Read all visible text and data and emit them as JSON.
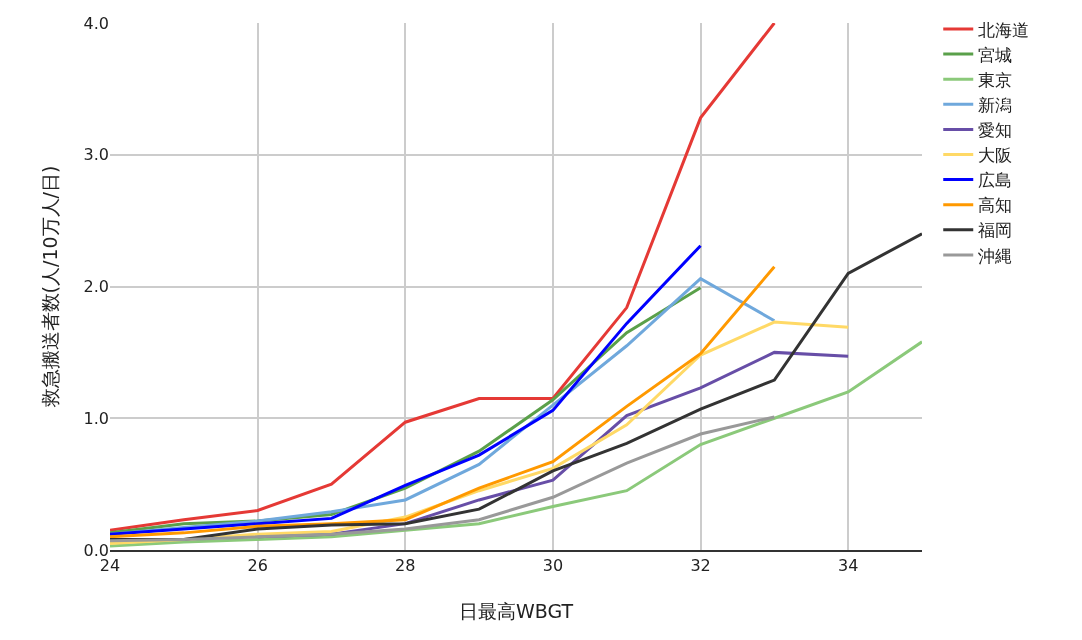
{
  "chart_data": {
    "type": "line",
    "xlabel": "日最高WBGT",
    "ylabel": "救急搬送者数(人/10万人/日)",
    "xlim": [
      24,
      35
    ],
    "xticks": [
      24,
      26,
      28,
      30,
      32,
      34
    ],
    "ylim": [
      0,
      4
    ],
    "yticks": [
      {
        "value": 0,
        "label": "0.0"
      },
      {
        "value": 1,
        "label": "1.0"
      },
      {
        "value": 2,
        "label": "2.0"
      },
      {
        "value": 3,
        "label": "3.0"
      },
      {
        "value": 4,
        "label": "4.0"
      }
    ],
    "grid": true,
    "legend": "top right",
    "marker": "none",
    "line_style": "solid",
    "x": [
      24,
      25,
      26,
      27,
      28,
      29,
      30,
      31,
      32,
      33,
      34,
      35
    ],
    "series": [
      {
        "name": "北海道",
        "color": "#e53935",
        "values": [
          0.15,
          0.23,
          0.3,
          0.5,
          0.97,
          1.15,
          1.15,
          1.84,
          3.28,
          4.0,
          null,
          null
        ]
      },
      {
        "name": "宮城",
        "color": "#5aa04a",
        "values": [
          0.13,
          0.2,
          0.22,
          0.27,
          0.47,
          0.75,
          1.14,
          1.65,
          1.99,
          null,
          null,
          null
        ]
      },
      {
        "name": "東京",
        "color": "#8bc97a",
        "values": [
          0.03,
          0.06,
          0.08,
          0.1,
          0.15,
          0.2,
          0.33,
          0.45,
          0.8,
          1.0,
          1.2,
          1.58
        ]
      },
      {
        "name": "新潟",
        "color": "#6fa8dc",
        "values": [
          0.12,
          0.17,
          0.22,
          0.29,
          0.38,
          0.65,
          1.1,
          1.55,
          2.06,
          1.74,
          null,
          null
        ]
      },
      {
        "name": "愛知",
        "color": "#674ea7",
        "values": [
          null,
          null,
          0.1,
          0.12,
          0.2,
          0.38,
          0.53,
          1.02,
          1.23,
          1.5,
          1.47,
          null
        ]
      },
      {
        "name": "大阪",
        "color": "#ffd966",
        "values": [
          0.05,
          0.08,
          0.12,
          0.14,
          0.25,
          0.45,
          0.62,
          0.95,
          1.48,
          1.73,
          1.69,
          null
        ]
      },
      {
        "name": "広島",
        "color": "#0000ff",
        "values": [
          0.12,
          0.16,
          0.2,
          0.24,
          0.49,
          0.72,
          1.06,
          1.72,
          2.31,
          null,
          null,
          null
        ]
      },
      {
        "name": "高知",
        "color": "#ff9900",
        "values": [
          0.1,
          0.13,
          0.18,
          0.2,
          0.23,
          0.47,
          0.67,
          1.09,
          1.49,
          2.15,
          null,
          null
        ]
      },
      {
        "name": "福岡",
        "color": "#333333",
        "values": [
          0.08,
          0.08,
          0.16,
          0.19,
          0.2,
          0.31,
          0.6,
          0.81,
          1.07,
          1.29,
          2.1,
          2.4
        ]
      },
      {
        "name": "沖縄",
        "color": "#999999",
        "values": [
          0.07,
          0.08,
          0.1,
          0.12,
          0.16,
          0.23,
          0.4,
          0.66,
          0.88,
          1.01,
          null,
          null
        ]
      }
    ]
  }
}
